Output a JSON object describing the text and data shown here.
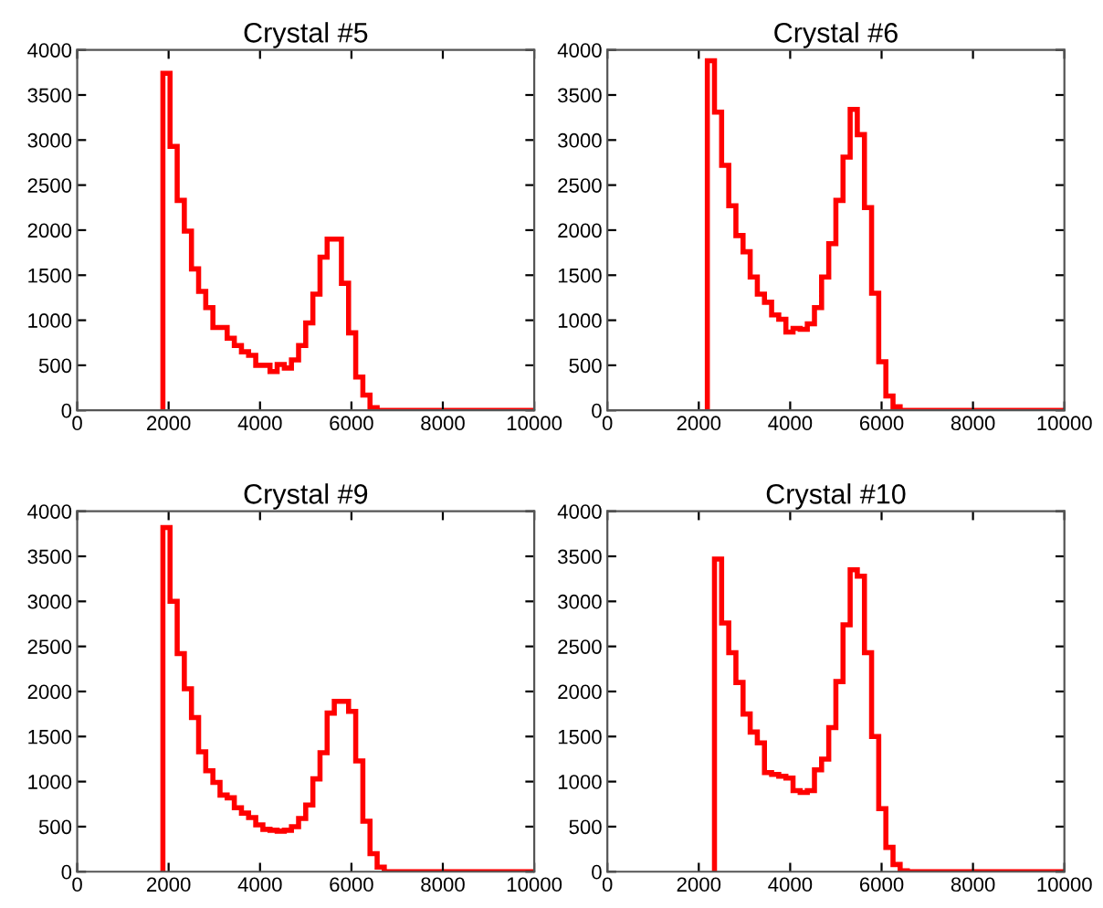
{
  "chart_data": [
    {
      "type": "histogram",
      "title": "Crystal #5",
      "color": "#ff0000",
      "xlim": [
        0,
        10000
      ],
      "ylim": [
        0,
        4000
      ],
      "xticks": [
        0,
        2000,
        4000,
        6000,
        8000,
        10000
      ],
      "yticks": [
        0,
        500,
        1000,
        1500,
        2000,
        2500,
        3000,
        3500,
        4000
      ],
      "grid": false,
      "bins": [
        1875,
        2031.25,
        2187.5,
        2343.75,
        2500,
        2656.25,
        2812.5,
        2968.75,
        3125,
        3281.25,
        3437.5,
        3593.75,
        3750,
        3906.25,
        4062.5,
        4218.75,
        4375,
        4531.25,
        4687.5,
        4843.75,
        5000,
        5156.25,
        5312.5,
        5468.75,
        5625,
        5781.25,
        5937.5,
        6093.75,
        6250,
        6406.25,
        6562.5,
        6718.75,
        6875,
        7031.25,
        7187.5,
        7343.75,
        7500,
        7656.25,
        7812.5,
        7968.75,
        8125,
        8281.25,
        8437.5,
        8593.75,
        8750,
        8906.25,
        9062.5,
        9218.75,
        9375,
        9531.25,
        9687.5,
        9843.75,
        10000
      ],
      "values": [
        3740,
        2930,
        2330,
        1990,
        1570,
        1320,
        1140,
        920,
        920,
        800,
        720,
        650,
        610,
        500,
        500,
        430,
        510,
        470,
        560,
        720,
        970,
        1290,
        1700,
        1900,
        1900,
        1410,
        860,
        370,
        170,
        30,
        0,
        0,
        0,
        0,
        0,
        0,
        0,
        0,
        0,
        0,
        0,
        0,
        0,
        0,
        0,
        0,
        0,
        0,
        0,
        0,
        0,
        0
      ]
    },
    {
      "type": "histogram",
      "title": "Crystal #6",
      "color": "#ff0000",
      "xlim": [
        0,
        10000
      ],
      "ylim": [
        0,
        4000
      ],
      "xticks": [
        0,
        2000,
        4000,
        6000,
        8000,
        10000
      ],
      "yticks": [
        0,
        500,
        1000,
        1500,
        2000,
        2500,
        3000,
        3500,
        4000
      ],
      "grid": false,
      "bins": [
        2187.5,
        2343.75,
        2500,
        2656.25,
        2812.5,
        2968.75,
        3125,
        3281.25,
        3437.5,
        3593.75,
        3750,
        3906.25,
        4062.5,
        4218.75,
        4375,
        4531.25,
        4687.5,
        4843.75,
        5000,
        5156.25,
        5312.5,
        5468.75,
        5625,
        5781.25,
        5937.5,
        6093.75,
        6250,
        6406.25,
        6562.5,
        6718.75,
        6875,
        7031.25,
        7187.5,
        7343.75,
        7500,
        7656.25,
        7812.5,
        7968.75,
        8125,
        8281.25,
        8437.5,
        8593.75,
        8750,
        8906.25,
        9062.5,
        9218.75,
        9375,
        9531.25,
        9687.5,
        9843.75,
        10000
      ],
      "values": [
        3880,
        3310,
        2720,
        2270,
        1940,
        1760,
        1480,
        1290,
        1200,
        1060,
        1010,
        870,
        910,
        900,
        960,
        1140,
        1480,
        1850,
        2330,
        2810,
        3340,
        3060,
        2250,
        1300,
        540,
        160,
        40,
        0,
        0,
        0,
        0,
        0,
        0,
        0,
        0,
        0,
        0,
        0,
        0,
        0,
        0,
        0,
        0,
        0,
        0,
        0,
        0,
        0,
        0,
        0
      ]
    },
    {
      "type": "histogram",
      "title": "Crystal #9",
      "color": "#ff0000",
      "xlim": [
        0,
        10000
      ],
      "ylim": [
        0,
        4000
      ],
      "xticks": [
        0,
        2000,
        4000,
        6000,
        8000,
        10000
      ],
      "yticks": [
        0,
        500,
        1000,
        1500,
        2000,
        2500,
        3000,
        3500,
        4000
      ],
      "grid": false,
      "bins": [
        1875,
        2031.25,
        2187.5,
        2343.75,
        2500,
        2656.25,
        2812.5,
        2968.75,
        3125,
        3281.25,
        3437.5,
        3593.75,
        3750,
        3906.25,
        4062.5,
        4218.75,
        4375,
        4531.25,
        4687.5,
        4843.75,
        5000,
        5156.25,
        5312.5,
        5468.75,
        5625,
        5781.25,
        5937.5,
        6093.75,
        6250,
        6406.25,
        6562.5,
        6718.75,
        6875,
        7031.25,
        7187.5,
        7343.75,
        7500,
        7656.25,
        7812.5,
        7968.75,
        8125,
        8281.25,
        8437.5,
        8593.75,
        8750,
        8906.25,
        9062.5,
        9218.75,
        9375,
        9531.25,
        9687.5,
        9843.75,
        10000
      ],
      "values": [
        3820,
        3000,
        2420,
        2030,
        1710,
        1330,
        1120,
        990,
        850,
        820,
        710,
        650,
        600,
        520,
        470,
        460,
        450,
        460,
        500,
        590,
        740,
        1030,
        1320,
        1760,
        1890,
        1890,
        1780,
        1230,
        560,
        200,
        50,
        0,
        0,
        0,
        0,
        0,
        0,
        0,
        0,
        0,
        0,
        0,
        0,
        0,
        0,
        0,
        0,
        0,
        0,
        0,
        0,
        0
      ]
    },
    {
      "type": "histogram",
      "title": "Crystal #10",
      "color": "#ff0000",
      "xlim": [
        0,
        10000
      ],
      "ylim": [
        0,
        4000
      ],
      "xticks": [
        0,
        2000,
        4000,
        6000,
        8000,
        10000
      ],
      "yticks": [
        0,
        500,
        1000,
        1500,
        2000,
        2500,
        3000,
        3500,
        4000
      ],
      "grid": false,
      "bins": [
        2343.75,
        2500,
        2656.25,
        2812.5,
        2968.75,
        3125,
        3281.25,
        3437.5,
        3593.75,
        3750,
        3906.25,
        4062.5,
        4218.75,
        4375,
        4531.25,
        4687.5,
        4843.75,
        5000,
        5156.25,
        5312.5,
        5468.75,
        5625,
        5781.25,
        5937.5,
        6093.75,
        6250,
        6406.25,
        6562.5,
        6718.75,
        6875,
        7031.25,
        7187.5,
        7343.75,
        7500,
        7656.25,
        7812.5,
        7968.75,
        8125,
        8281.25,
        8437.5,
        8593.75,
        8750,
        8906.25,
        9062.5,
        9218.75,
        9375,
        9531.25,
        9687.5,
        9843.75,
        10000
      ],
      "values": [
        3470,
        2760,
        2430,
        2100,
        1750,
        1550,
        1430,
        1100,
        1080,
        1060,
        1040,
        900,
        880,
        900,
        1130,
        1250,
        1600,
        2110,
        2740,
        3350,
        3280,
        2430,
        1500,
        700,
        270,
        80,
        10,
        0,
        0,
        0,
        0,
        0,
        0,
        0,
        0,
        0,
        0,
        0,
        0,
        0,
        0,
        0,
        0,
        0,
        0,
        0,
        0,
        0,
        0
      ]
    }
  ]
}
